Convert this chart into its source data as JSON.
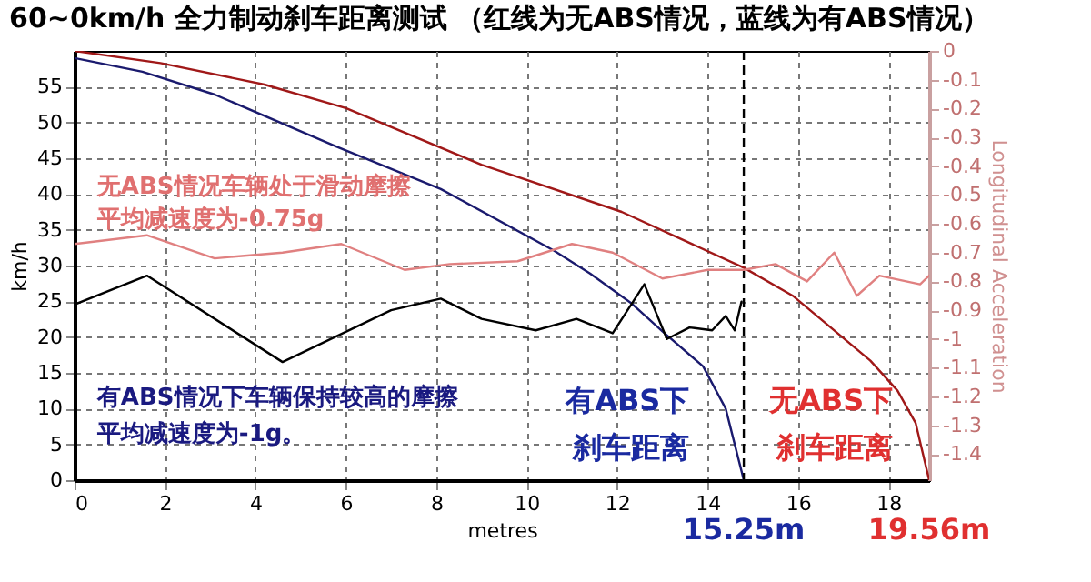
{
  "chart_data": {
    "type": "line",
    "title": "60~0km/h 全力制动刹车距离测试 （红线为无ABS情况，蓝线为有ABS情况）",
    "xlabel": "metres",
    "ylabel": "km/h",
    "y2label": "Longitudinal Acceleration",
    "xlim": [
      0,
      18.9
    ],
    "xticks": [
      0,
      2,
      4,
      6,
      8,
      10,
      12,
      14,
      16,
      18
    ],
    "ylim": [
      0,
      60
    ],
    "yticks": [
      0,
      5,
      10,
      15,
      20,
      25,
      30,
      35,
      40,
      45,
      50,
      55
    ],
    "y2lim": [
      -1.49,
      0
    ],
    "y2ticks": [
      0,
      -0.1,
      -0.2,
      -0.3,
      -0.4,
      -0.5,
      -0.6,
      -0.7,
      -0.8,
      -0.9,
      -1,
      -1.1,
      -1.2,
      -1.3,
      -1.4
    ],
    "grid": true,
    "line_style": "solid",
    "marker": "none",
    "series": [
      {
        "color": "#a01818",
        "x": [
          0,
          1.9,
          4.2,
          6,
          9,
          12.1,
          14.8,
          15.9,
          17.6,
          18.2,
          18.6,
          18.9
        ],
        "values": [
          60,
          58.3,
          55.3,
          52,
          44.1,
          37.5,
          29.7,
          25.7,
          16.7,
          12.5,
          8,
          0
        ]
      },
      {
        "color": "#1a1a6e",
        "x": [
          0,
          1.5,
          3.1,
          5.8,
          8.1,
          10.6,
          11.4,
          12.3,
          13,
          13.9,
          14.4,
          14.8
        ],
        "values": [
          59,
          57.1,
          53.9,
          46.6,
          40.7,
          32.1,
          28.9,
          24.8,
          20.8,
          15.9,
          10,
          0
        ]
      },
      {
        "color": "#000000",
        "axis": "y2",
        "x": [
          0,
          1.6,
          4.6,
          7,
          8.1,
          9,
          10.2,
          11.1,
          11.9,
          12.6,
          13.1,
          13.6,
          14.1,
          14.4,
          14.6,
          14.75
        ],
        "values": [
          -0.88,
          -0.78,
          -1.08,
          -0.9,
          -0.86,
          -0.93,
          -0.97,
          -0.93,
          -0.98,
          -0.81,
          -1,
          -0.96,
          -0.97,
          -0.92,
          -0.97,
          -0.87
        ]
      },
      {
        "color": "#e08080",
        "axis": "y2",
        "x": [
          0,
          1.6,
          3.1,
          4.6,
          5.9,
          7.3,
          8.3,
          9.8,
          11,
          11.9,
          13,
          14,
          14.8,
          15.5,
          16.2,
          16.8,
          17.3,
          17.8,
          18.7,
          18.9
        ],
        "values": [
          -0.67,
          -0.64,
          -0.72,
          -0.7,
          -0.67,
          -0.76,
          -0.74,
          -0.73,
          -0.67,
          -0.7,
          -0.79,
          -0.76,
          -0.76,
          -0.74,
          -0.8,
          -0.7,
          -0.85,
          -0.78,
          -0.81,
          -0.78
        ]
      }
    ],
    "ref_lines": [
      {
        "axis": "x",
        "value": 14.8,
        "color": "#000000",
        "line_style": "dashed"
      }
    ],
    "annotations": [
      "无ABS情况车辆处于滑动摩擦",
      "平均减速度为-0.75g",
      "有ABS情况下车辆保持较高的摩擦",
      "平均减速度为-1g。",
      "有ABS下",
      "刹车距离",
      "无ABS下",
      "刹车距离",
      "15.25m",
      "19.56m"
    ]
  }
}
